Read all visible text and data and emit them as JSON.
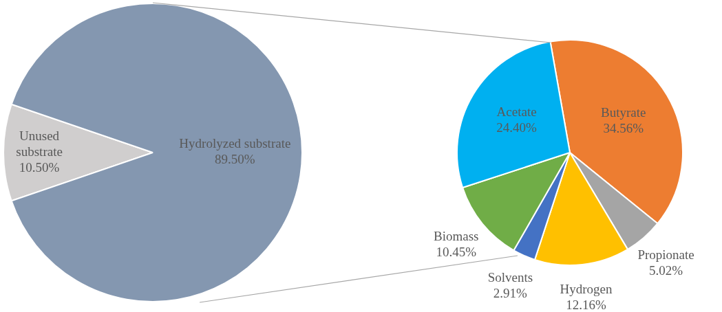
{
  "chart_data": [
    {
      "type": "pie",
      "categories": [
        "Unused substrate",
        "Hydrolyzed substrate"
      ],
      "values": [
        10.5,
        89.5
      ],
      "colors": [
        "#d0cece",
        "#8497b0"
      ],
      "value_labels": [
        "10.50%",
        "89.50%"
      ],
      "legend": false
    },
    {
      "type": "pie",
      "categories": [
        "Butyrate",
        "Propionate",
        "Hydrogen",
        "Solvents",
        "Biomass",
        "Acetate"
      ],
      "values": [
        34.56,
        5.02,
        12.16,
        2.91,
        10.45,
        24.4
      ],
      "colors": [
        "#ed7d31",
        "#a5a5a5",
        "#ffc000",
        "#4472c4",
        "#70ad47",
        "#00b0f0"
      ],
      "value_labels": [
        "34.56%",
        "5.02%",
        "12.16%",
        "2.91%",
        "10.45%",
        "24.40%"
      ],
      "legend": false
    }
  ]
}
